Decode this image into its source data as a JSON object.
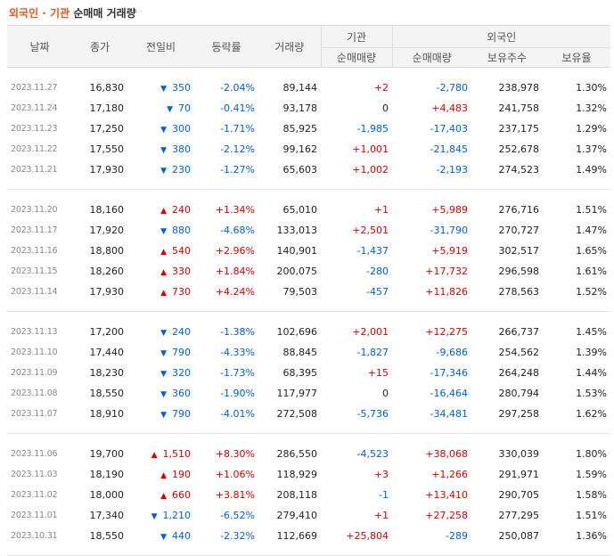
{
  "title": {
    "highlight": "외국인 · 기관",
    "rest": "순매매 거래량"
  },
  "headers": {
    "date": "날짜",
    "close": "종가",
    "change": "전일비",
    "rate": "등락률",
    "volume": "거래량",
    "inst_group": "기관",
    "foreign_group": "외국인",
    "inst_net": "순매매량",
    "foreign_net": "순매매량",
    "holdings": "보유주수",
    "ratio": "보유율"
  },
  "colors": {
    "up": "#d60000",
    "down": "#005dde",
    "title_accent": "#e65a1e"
  },
  "icons": {
    "up": "triangle-up-icon",
    "down": "triangle-down-icon"
  },
  "groups": [
    [
      {
        "date": "2023.11.27",
        "close": "16,830",
        "dir": "down",
        "change": "350",
        "rate": "-2.04%",
        "volume": "89,144",
        "inst": "+2",
        "foreign": "-2,780",
        "holdings": "238,978",
        "ratio": "1.30%"
      },
      {
        "date": "2023.11.24",
        "close": "17,180",
        "dir": "down",
        "change": "70",
        "rate": "-0.41%",
        "volume": "93,178",
        "inst": "0",
        "foreign": "+4,483",
        "holdings": "241,758",
        "ratio": "1.32%"
      },
      {
        "date": "2023.11.23",
        "close": "17,250",
        "dir": "down",
        "change": "300",
        "rate": "-1.71%",
        "volume": "85,925",
        "inst": "-1,985",
        "foreign": "-17,403",
        "holdings": "237,175",
        "ratio": "1.29%"
      },
      {
        "date": "2023.11.22",
        "close": "17,550",
        "dir": "down",
        "change": "380",
        "rate": "-2.12%",
        "volume": "99,162",
        "inst": "+1,001",
        "foreign": "-21,845",
        "holdings": "252,678",
        "ratio": "1.37%"
      },
      {
        "date": "2023.11.21",
        "close": "17,930",
        "dir": "down",
        "change": "230",
        "rate": "-1.27%",
        "volume": "65,603",
        "inst": "+1,002",
        "foreign": "-2,193",
        "holdings": "274,523",
        "ratio": "1.49%"
      }
    ],
    [
      {
        "date": "2023.11.20",
        "close": "18,160",
        "dir": "up",
        "change": "240",
        "rate": "+1.34%",
        "volume": "65,010",
        "inst": "+1",
        "foreign": "+5,989",
        "holdings": "276,716",
        "ratio": "1.51%"
      },
      {
        "date": "2023.11.17",
        "close": "17,920",
        "dir": "down",
        "change": "880",
        "rate": "-4.68%",
        "volume": "133,013",
        "inst": "+2,501",
        "foreign": "-31,790",
        "holdings": "270,727",
        "ratio": "1.47%"
      },
      {
        "date": "2023.11.16",
        "close": "18,800",
        "dir": "up",
        "change": "540",
        "rate": "+2.96%",
        "volume": "140,901",
        "inst": "-1,437",
        "foreign": "+5,919",
        "holdings": "302,517",
        "ratio": "1.65%"
      },
      {
        "date": "2023.11.15",
        "close": "18,260",
        "dir": "up",
        "change": "330",
        "rate": "+1.84%",
        "volume": "200,075",
        "inst": "-280",
        "foreign": "+17,732",
        "holdings": "296,598",
        "ratio": "1.61%"
      },
      {
        "date": "2023.11.14",
        "close": "17,930",
        "dir": "up",
        "change": "730",
        "rate": "+4.24%",
        "volume": "79,503",
        "inst": "-457",
        "foreign": "+11,826",
        "holdings": "278,563",
        "ratio": "1.52%"
      }
    ],
    [
      {
        "date": "2023.11.13",
        "close": "17,200",
        "dir": "down",
        "change": "240",
        "rate": "-1.38%",
        "volume": "102,696",
        "inst": "+2,001",
        "foreign": "+12,275",
        "holdings": "266,737",
        "ratio": "1.45%"
      },
      {
        "date": "2023.11.10",
        "close": "17,440",
        "dir": "down",
        "change": "790",
        "rate": "-4.33%",
        "volume": "88,845",
        "inst": "-1,827",
        "foreign": "-9,686",
        "holdings": "254,562",
        "ratio": "1.39%"
      },
      {
        "date": "2023.11.09",
        "close": "18,230",
        "dir": "down",
        "change": "320",
        "rate": "-1.73%",
        "volume": "68,395",
        "inst": "+15",
        "foreign": "-17,346",
        "holdings": "264,248",
        "ratio": "1.44%"
      },
      {
        "date": "2023.11.08",
        "close": "18,550",
        "dir": "down",
        "change": "360",
        "rate": "-1.90%",
        "volume": "117,977",
        "inst": "0",
        "foreign": "-16,464",
        "holdings": "280,794",
        "ratio": "1.53%"
      },
      {
        "date": "2023.11.07",
        "close": "18,910",
        "dir": "down",
        "change": "790",
        "rate": "-4.01%",
        "volume": "272,508",
        "inst": "-5,736",
        "foreign": "-34,481",
        "holdings": "297,258",
        "ratio": "1.62%"
      }
    ],
    [
      {
        "date": "2023.11.06",
        "close": "19,700",
        "dir": "up",
        "change": "1,510",
        "rate": "+8.30%",
        "volume": "286,550",
        "inst": "-4,523",
        "foreign": "+38,068",
        "holdings": "330,039",
        "ratio": "1.80%"
      },
      {
        "date": "2023.11.03",
        "close": "18,190",
        "dir": "up",
        "change": "190",
        "rate": "+1.06%",
        "volume": "118,929",
        "inst": "+3",
        "foreign": "+1,266",
        "holdings": "291,971",
        "ratio": "1.59%"
      },
      {
        "date": "2023.11.02",
        "close": "18,000",
        "dir": "up",
        "change": "660",
        "rate": "+3.81%",
        "volume": "208,118",
        "inst": "-1",
        "foreign": "+13,410",
        "holdings": "290,705",
        "ratio": "1.58%"
      },
      {
        "date": "2023.11.01",
        "close": "17,340",
        "dir": "down",
        "change": "1,210",
        "rate": "-6.52%",
        "volume": "279,410",
        "inst": "+1",
        "foreign": "+27,258",
        "holdings": "277,295",
        "ratio": "1.51%"
      },
      {
        "date": "2023.10.31",
        "close": "18,550",
        "dir": "down",
        "change": "440",
        "rate": "-2.32%",
        "volume": "112,669",
        "inst": "+25,804",
        "foreign": "-289",
        "holdings": "250,087",
        "ratio": "1.36%"
      }
    ]
  ]
}
